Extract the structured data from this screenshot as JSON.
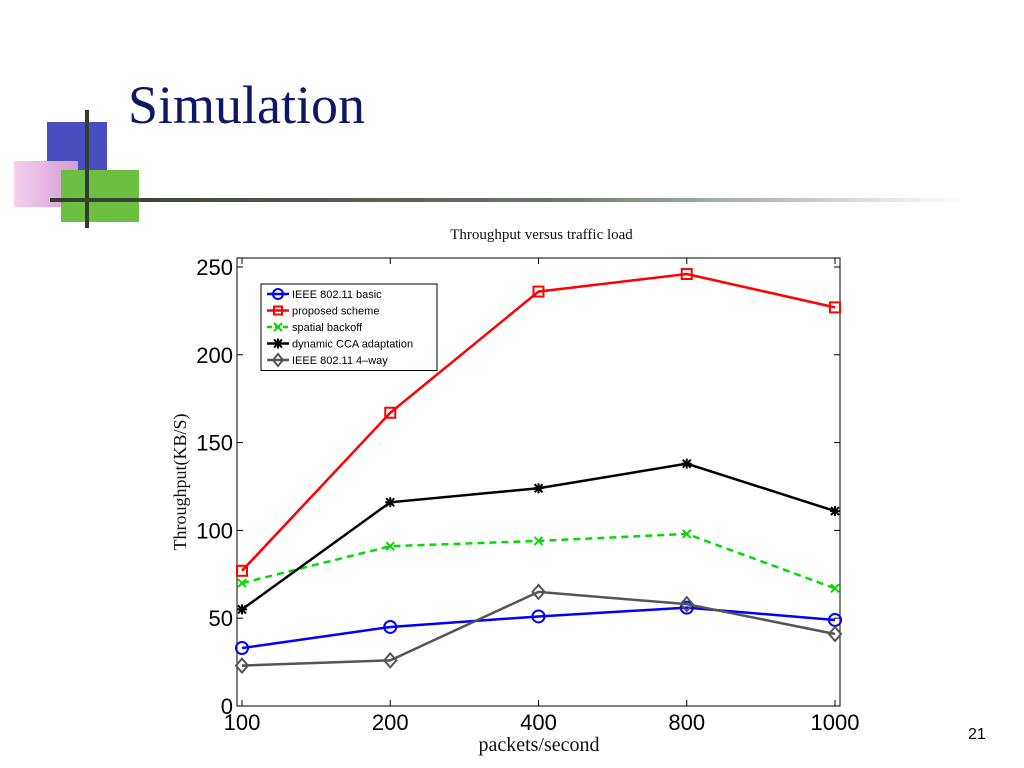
{
  "slide": {
    "title": "Simulation",
    "page_number": "21"
  },
  "chart_data": {
    "type": "line",
    "title": "Throughput versus traffic load",
    "xlabel": "packets/second",
    "ylabel": "Throughput(KB/S)",
    "categories": [
      "100",
      "200",
      "400",
      "800",
      "1000"
    ],
    "ylim": [
      0,
      250
    ],
    "yticks": [
      0,
      50,
      100,
      150,
      200,
      250
    ],
    "grid": false,
    "legend_position": "top-left",
    "series": [
      {
        "name": "IEEE 802.11 basic",
        "color": "#0000ff",
        "marker": "circle",
        "dash": "solid",
        "values": [
          33,
          45,
          51,
          56,
          49
        ]
      },
      {
        "name": "proposed scheme",
        "color": "#ff0000",
        "marker": "square",
        "dash": "solid",
        "values": [
          77,
          167,
          236,
          246,
          227
        ]
      },
      {
        "name": "spatial backoff",
        "color": "#00dd00",
        "marker": "x",
        "dash": "dashed",
        "values": [
          70,
          91,
          94,
          98,
          67
        ]
      },
      {
        "name": "dynamic CCA adaptation",
        "color": "#000000",
        "marker": "star",
        "dash": "solid",
        "values": [
          55,
          116,
          124,
          138,
          111
        ]
      },
      {
        "name": "IEEE 802.11 4–way",
        "color": "#555555",
        "marker": "diamond",
        "dash": "solid",
        "values": [
          23,
          26,
          65,
          58,
          41
        ]
      }
    ]
  }
}
